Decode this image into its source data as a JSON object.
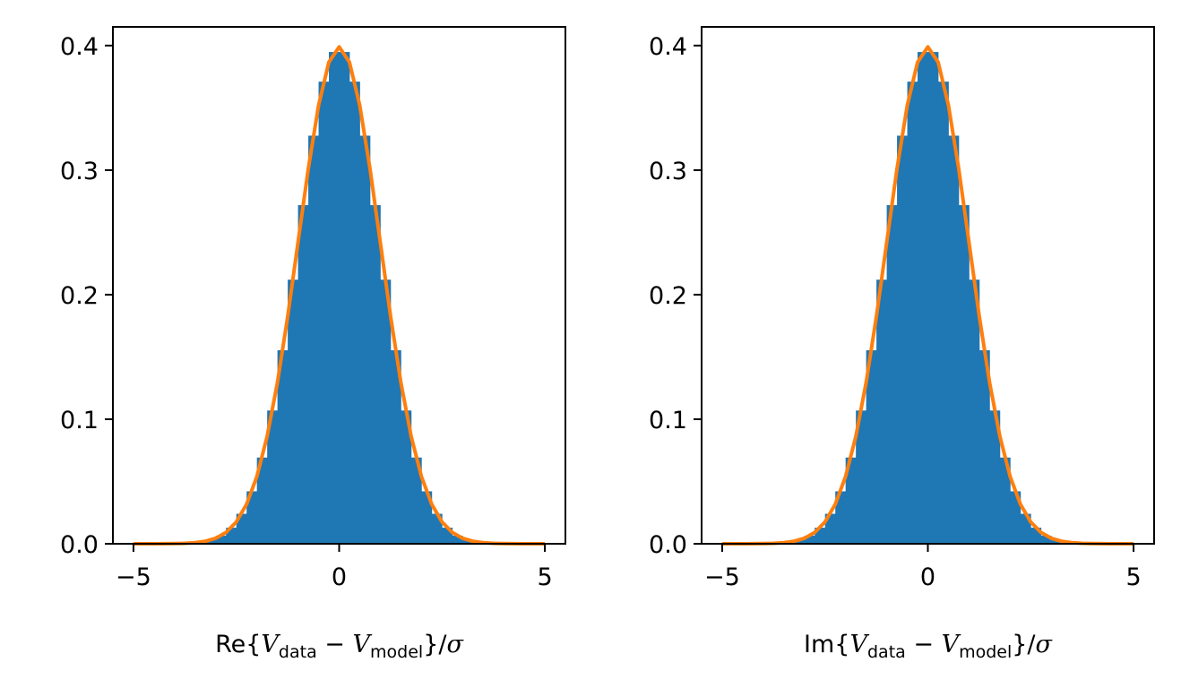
{
  "chart_data": [
    {
      "type": "bar",
      "panel": "left",
      "xlabel": {
        "prefix": "Re{",
        "v1": "V",
        "sub1": "data",
        "minus": " − ",
        "v2": "V",
        "sub2": "model",
        "suffix": "}/",
        "sigma": "σ"
      },
      "xlim": [
        -5.5,
        5.5
      ],
      "ylim": [
        0,
        0.415
      ],
      "xticks": [
        -5,
        0,
        5
      ],
      "xtick_labels": [
        "−5",
        "0",
        "5"
      ],
      "yticks": [
        0.0,
        0.1,
        0.2,
        0.3,
        0.4
      ],
      "ytick_labels": [
        "0.0",
        "0.1",
        "0.2",
        "0.3",
        "0.4"
      ],
      "grid": false,
      "series": [
        {
          "kind": "histogram",
          "color": "#1f77b4",
          "bin_range": [
            -5,
            5
          ],
          "bin_count": 40
        },
        {
          "kind": "line",
          "color": "#ff7f0e",
          "x_range": [
            -5,
            5
          ],
          "points": 41
        }
      ],
      "curve_formula": "standard normal pdf",
      "peak_value": 0.399
    },
    {
      "type": "bar",
      "panel": "right",
      "xlabel": {
        "prefix": "Im{",
        "v1": "V",
        "sub1": "data",
        "minus": " − ",
        "v2": "V",
        "sub2": "model",
        "suffix": "}/",
        "sigma": "σ"
      },
      "xlim": [
        -5.5,
        5.5
      ],
      "ylim": [
        0,
        0.415
      ],
      "xticks": [
        -5,
        0,
        5
      ],
      "xtick_labels": [
        "−5",
        "0",
        "5"
      ],
      "yticks": [
        0.0,
        0.1,
        0.2,
        0.3,
        0.4
      ],
      "ytick_labels": [
        "0.0",
        "0.1",
        "0.2",
        "0.3",
        "0.4"
      ],
      "grid": false,
      "series": [
        {
          "kind": "histogram",
          "color": "#1f77b4",
          "bin_range": [
            -5,
            5
          ],
          "bin_count": 40
        },
        {
          "kind": "line",
          "color": "#ff7f0e",
          "x_range": [
            -5,
            5
          ],
          "points": 41
        }
      ],
      "curve_formula": "standard normal pdf",
      "peak_value": 0.399
    }
  ]
}
